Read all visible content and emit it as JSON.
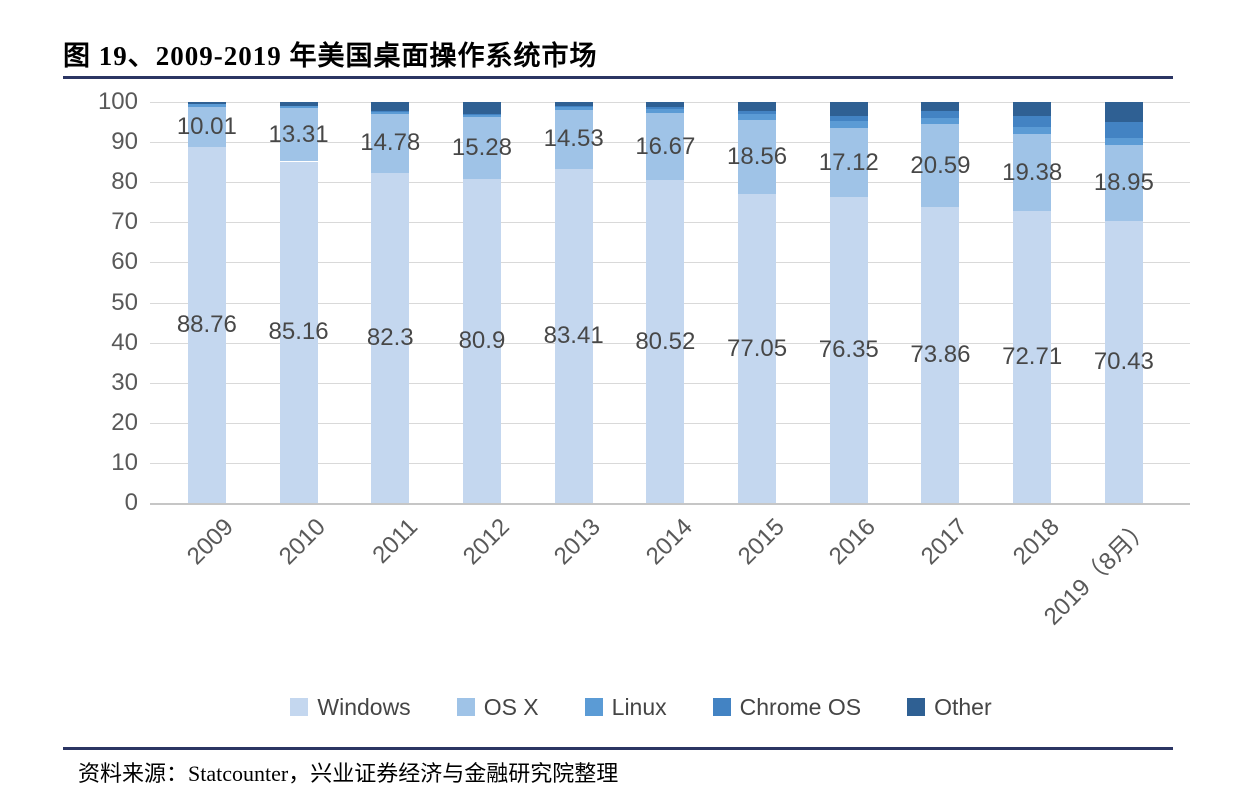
{
  "page": {
    "title": "图 19、2009-2019 年美国桌面操作系统市场",
    "source": "资料来源：Statcounter，兴业证券经济与金融研究院整理",
    "accent_rule_color": "#2b3563"
  },
  "style": {
    "grid_color": "#d9d9d9",
    "baseline_color": "#c6c6c6",
    "tick_color": "#595959",
    "data_label_color": "#474747"
  },
  "chart_data": {
    "type": "bar",
    "stacked": true,
    "title": "图 19、2009-2019 年美国桌面操作系统市场",
    "categories": [
      "2009",
      "2010",
      "2011",
      "2012",
      "2013",
      "2014",
      "2015",
      "2016",
      "2017",
      "2018",
      "2019（8月）"
    ],
    "series": [
      {
        "name": "Windows",
        "color": "#c4d7ef",
        "labeled": true,
        "values": [
          88.76,
          85.16,
          82.3,
          80.9,
          83.41,
          80.52,
          77.05,
          76.35,
          73.86,
          72.71,
          70.43
        ]
      },
      {
        "name": "OS X",
        "color": "#9fc3e7",
        "labeled": true,
        "values": [
          10.01,
          13.31,
          14.78,
          15.28,
          14.53,
          16.67,
          18.56,
          17.12,
          20.59,
          19.38,
          18.95
        ]
      },
      {
        "name": "Linux",
        "color": "#5b9bd5",
        "labeled": false,
        "values": [
          0.66,
          0.65,
          0.75,
          0.82,
          0.84,
          1.05,
          1.33,
          1.79,
          1.56,
          1.68,
          1.72
        ]
      },
      {
        "name": "Chrome OS",
        "color": "#4383c3",
        "labeled": false,
        "values": [
          0,
          0,
          0.02,
          0.1,
          0.21,
          0.45,
          0.74,
          1.3,
          1.81,
          2.71,
          4
        ]
      },
      {
        "name": "Other",
        "color": "#2f6093",
        "labeled": false,
        "values": [
          0.57,
          0.88,
          2.15,
          2.9,
          1.01,
          1.31,
          2.32,
          3.44,
          2.18,
          3.52,
          4.9
        ]
      }
    ],
    "xlabel": "",
    "ylabel": "",
    "ylim": [
      0,
      100
    ],
    "yticks": [
      0,
      10,
      20,
      30,
      40,
      50,
      60,
      70,
      80,
      90,
      100
    ],
    "grid": true,
    "legend_position": "bottom",
    "data_label_series": [
      "Windows",
      "OS X"
    ],
    "note": "Only Windows and OS X segments carry data labels; Linux, Chrome OS and Other values are estimated from bar segment heights."
  }
}
